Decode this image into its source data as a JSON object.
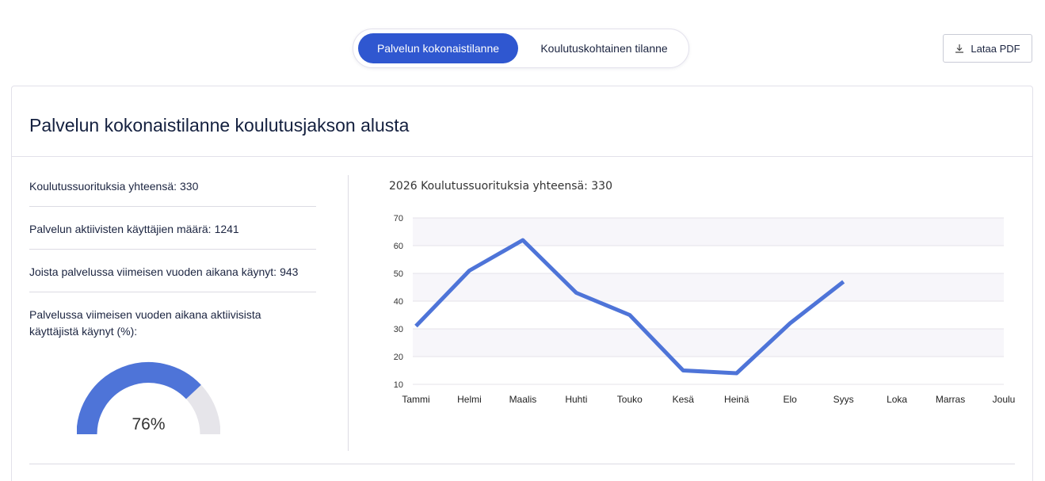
{
  "tabs": {
    "active_label": "Palvelun kokonaistilanne",
    "inactive_label": "Koulutuskohtainen tilanne"
  },
  "download_button": {
    "label": "Lataa PDF",
    "icon": "download-icon"
  },
  "card": {
    "title": "Palvelun kokonaistilanne koulutusjakson alusta"
  },
  "stats": [
    {
      "label": "Koulutussuorituksia yhteensä:",
      "value": "330"
    },
    {
      "label": "Palvelun aktiivisten käyttäjien määrä:",
      "value": "1241"
    },
    {
      "label": "Joista palvelussa viimeisen vuoden aikana käynyt:",
      "value": "943"
    }
  ],
  "gauge": {
    "label": "Palvelussa viimeisen vuoden aikana aktiivisista käyttäjistä käynyt (%):",
    "value_text": "76%",
    "value": 76,
    "color": "#4e74d8",
    "track_color": "#e6e5ea"
  },
  "chart_title": "2026 Koulutussuorituksia yhteensä: 330",
  "chart_data": {
    "type": "line",
    "categories": [
      "Tammi",
      "Helmi",
      "Maalis",
      "Huhti",
      "Touko",
      "Kesä",
      "Heinä",
      "Elo",
      "Syys",
      "Loka",
      "Marras",
      "Joulu"
    ],
    "series": [
      {
        "values": [
          31,
          51,
          62,
          43,
          35,
          15,
          14,
          32,
          47,
          null,
          null,
          null
        ],
        "color": "#4e74d8"
      }
    ],
    "yticks": [
      10,
      20,
      30,
      40,
      50,
      60,
      70
    ],
    "ylim": [
      10,
      70
    ],
    "band_color": "#f7f6fa",
    "grid": true
  }
}
